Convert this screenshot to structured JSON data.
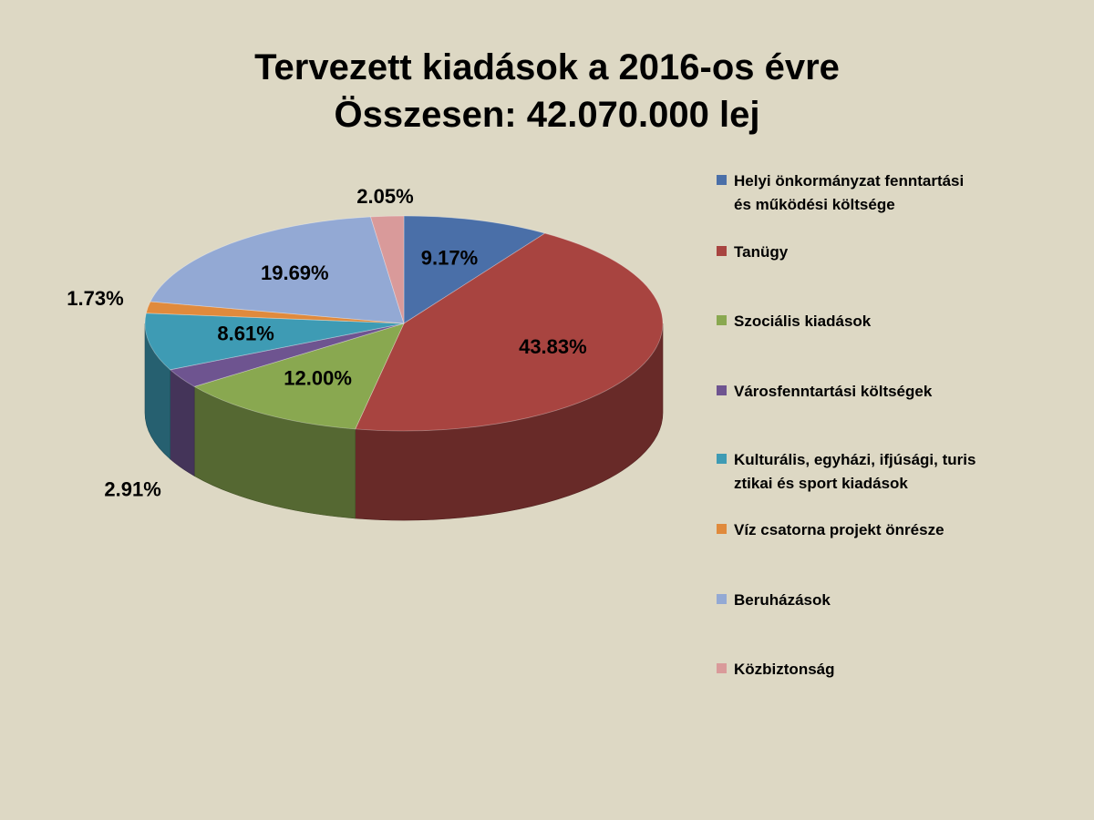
{
  "title": {
    "line1": "Tervezett kiadások a 2016-os évre",
    "line2": "Összesen: 42.070.000 lej"
  },
  "chart_data": {
    "type": "pie",
    "title": "Tervezett kiadások a 2016-os évre Összesen: 42.070.000 lej",
    "style": "3d-exploded-none",
    "legend_position": "right",
    "start_angle_deg": 90,
    "direction": "clockwise",
    "categories": [
      "Helyi önkormányzat fenntartási és működési költsége",
      "Tanügy",
      "Szociális kiadások",
      "Városfenntartási költségek",
      "Kulturális, egyházi, ifjúsági, turisztikai és sport kiadások",
      "Víz csatorna projekt önrésze",
      "Beruházások",
      "Közbiztonság"
    ],
    "values": [
      9.17,
      43.83,
      12.0,
      2.91,
      8.61,
      1.73,
      19.69,
      2.05
    ],
    "labels": [
      "9.17%",
      "43.83%",
      "12.00%",
      "2.91%",
      "8.61%",
      "1.73%",
      "19.69%",
      "2.05%"
    ],
    "colors": [
      "#4a6fa8",
      "#a84440",
      "#89a850",
      "#6e5490",
      "#3e9bb4",
      "#e08a3c",
      "#93a9d4",
      "#d99a9a"
    ]
  },
  "legend": {
    "items": [
      {
        "line1": "Helyi önkormányzat fenntartási",
        "line2": "és működési költsége"
      },
      {
        "line1": "Tanügy",
        "line2": ""
      },
      {
        "line1": "Szociális kiadások",
        "line2": ""
      },
      {
        "line1": "Városfenntartási költségek",
        "line2": ""
      },
      {
        "line1": "Kulturális, egyházi, ifjúsági, turis",
        "line2": "ztikai és sport kiadások"
      },
      {
        "line1": "Víz csatorna projekt önrésze",
        "line2": ""
      },
      {
        "line1": "Beruházások",
        "line2": ""
      },
      {
        "line1": "Közbiztonság",
        "line2": ""
      }
    ]
  }
}
